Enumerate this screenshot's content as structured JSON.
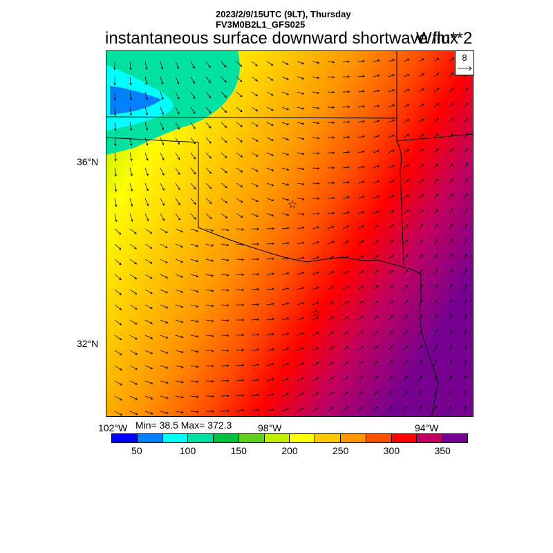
{
  "header": {
    "datetime": "2023/2/9/15UTC (9LT), Thursday",
    "model": "FV3M0B2L1_GFS025",
    "title": "instantaneous surface downward shortwave flux",
    "units": "W/m**2"
  },
  "axes": {
    "lat_ticks": [
      "36°N",
      "32°N"
    ],
    "lon_ticks": [
      "102°W",
      "98°W",
      "94°W"
    ]
  },
  "vector_reference": {
    "label": "8"
  },
  "stats": "Min= 38.5 Max= 372.3",
  "colorbar": {
    "colors": [
      "#0000ff",
      "#0080ff",
      "#00ffff",
      "#00e0a0",
      "#00c040",
      "#60d020",
      "#c0f000",
      "#ffff00",
      "#ffc800",
      "#ff9600",
      "#ff5000",
      "#ff0000",
      "#c00060",
      "#780090"
    ],
    "labels": [
      "50",
      "100",
      "150",
      "200",
      "250",
      "300",
      "350"
    ]
  },
  "markers": [
    "star",
    "star"
  ]
}
